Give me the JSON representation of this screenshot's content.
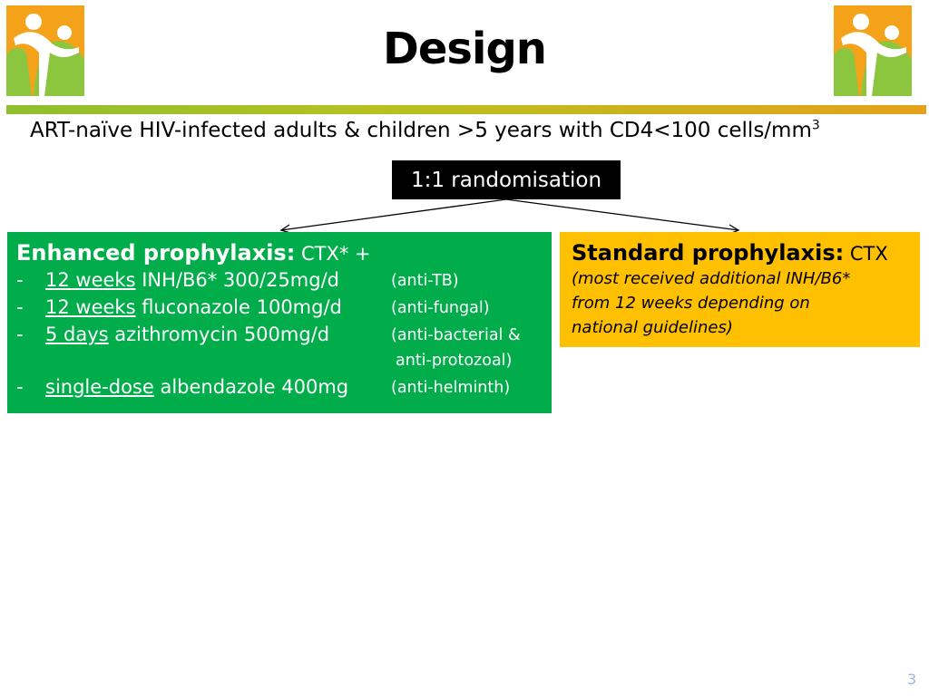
{
  "header": {
    "title": "Design"
  },
  "population": {
    "text": "ART-naïve HIV-infected adults & children >5 years with CD4<100 cells/mm",
    "superscript": "3"
  },
  "randomisation": {
    "label": "1:1 randomisation"
  },
  "enhanced": {
    "heading": "Enhanced prophylaxis:",
    "heading_suffix": " CTX* +",
    "items": [
      {
        "bullet": "-",
        "duration": "12 weeks",
        "drug": " INH/B6* 300/25mg/d",
        "effect": "(anti-TB)"
      },
      {
        "bullet": "-",
        "duration": "12 weeks",
        "drug": " fluconazole 100mg/d",
        "effect": "(anti-fungal)"
      },
      {
        "bullet": "-",
        "duration": "5 days",
        "drug": " azithromycin 500mg/d",
        "effect": "(anti-bacterial &",
        "effect_line2": "anti-protozoal)"
      },
      {
        "bullet": "-",
        "duration": "single-dose",
        "drug": " albendazole 400mg",
        "effect": "(anti-helminth)"
      }
    ]
  },
  "standard": {
    "heading": "Standard prophylaxis:",
    "heading_suffix": " CTX",
    "note_lines": [
      "(most received additional INH/B6*",
      "from 12 weeks depending on",
      "national guidelines)"
    ]
  },
  "footer": {
    "page_number": "3"
  },
  "colors": {
    "enhanced_box": "#00ad4a",
    "standard_box": "#ffc000",
    "randomisation_box": "#000000",
    "logo_orange": "#f5a21b",
    "logo_green": "#8cc63f"
  },
  "icons": {
    "logo": "family-logo-icon"
  }
}
